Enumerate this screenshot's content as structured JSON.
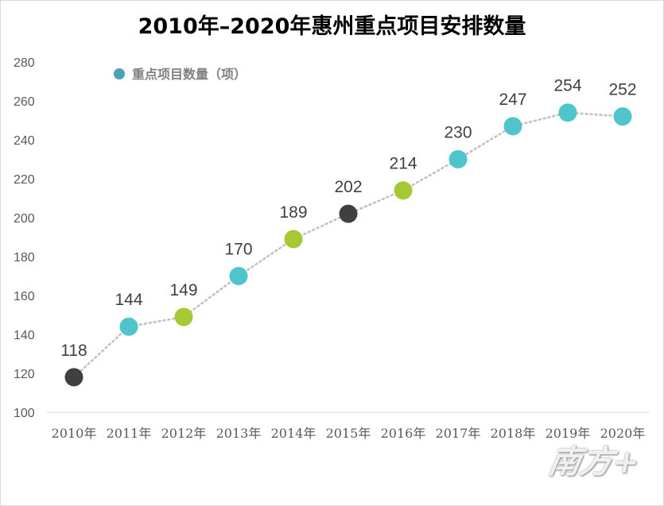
{
  "chart_data": {
    "type": "line",
    "title": "2010年–2020年惠州重点项目安排数量",
    "categories": [
      "2010年",
      "2011年",
      "2012年",
      "2013年",
      "2014年",
      "2015年",
      "2016年",
      "2017年",
      "2018年",
      "2019年",
      "2020年"
    ],
    "series": [
      {
        "name": "重点项目数量（项）",
        "values": [
          118,
          144,
          149,
          170,
          189,
          202,
          214,
          230,
          247,
          254,
          252
        ]
      }
    ],
    "point_colors": [
      "#404040",
      "#4ec5cb",
      "#a5c932",
      "#4ec5cb",
      "#a5c932",
      "#404040",
      "#a5c932",
      "#4ec5cb",
      "#4ec5cb",
      "#4ec5cb",
      "#4ec5cb"
    ],
    "legend_marker_color": "#4aa2b8",
    "line_color": "#bfbfbf",
    "ylim": [
      100,
      280
    ],
    "yticks": [
      100,
      120,
      140,
      160,
      180,
      200,
      220,
      240,
      260,
      280
    ],
    "xlabel": "",
    "ylabel": "",
    "grid": false,
    "legend_position": "top-left"
  },
  "watermark": "南方+"
}
